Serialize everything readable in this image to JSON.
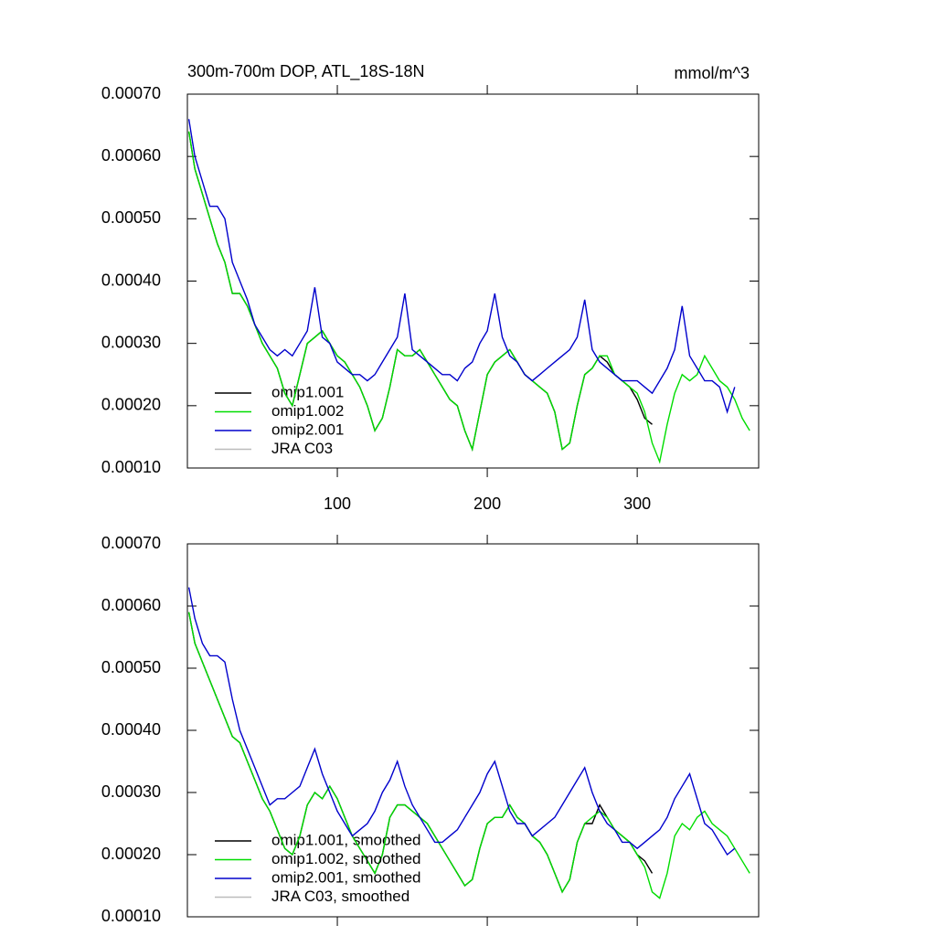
{
  "chart_data": [
    {
      "type": "line",
      "title": "300m-700m DOP, ATL_18S-18N",
      "units": "mmol/m^3",
      "xlim": [
        0,
        381
      ],
      "xticks": [
        100,
        200,
        300
      ],
      "ylim": [
        0.0001,
        0.0007
      ],
      "yticks": [
        {
          "value": 0.0001,
          "label": "0.00010"
        },
        {
          "value": 0.0002,
          "label": "0.00020"
        },
        {
          "value": 0.0003,
          "label": "0.00030"
        },
        {
          "value": 0.0004,
          "label": "0.00040"
        },
        {
          "value": 0.0005,
          "label": "0.00050"
        },
        {
          "value": 0.0006,
          "label": "0.00060"
        },
        {
          "value": 0.0007,
          "label": "0.00070"
        }
      ],
      "x": [
        1,
        5,
        10,
        15,
        20,
        25,
        30,
        35,
        40,
        45,
        50,
        55,
        60,
        65,
        70,
        75,
        80,
        85,
        90,
        95,
        100,
        105,
        110,
        115,
        120,
        125,
        130,
        135,
        140,
        145,
        150,
        155,
        160,
        165,
        170,
        175,
        180,
        185,
        190,
        195,
        200,
        205,
        210,
        215,
        220,
        225,
        230,
        235,
        240,
        245,
        250,
        255,
        260,
        265,
        270,
        275,
        280,
        285,
        290,
        295,
        300,
        305,
        310,
        315,
        320,
        325,
        330,
        335,
        340,
        345,
        350,
        355,
        360,
        365,
        370,
        375
      ],
      "series": [
        {
          "name": "omip1.001",
          "color": "#000000",
          "values": [
            0.00064,
            0.00058,
            0.00054,
            0.0005,
            0.00046,
            0.00043,
            0.00038,
            0.00038,
            0.00036,
            0.00033,
            0.0003,
            0.00028,
            0.00026,
            0.00022,
            0.0002,
            0.00025,
            0.0003,
            0.00031,
            0.00032,
            0.0003,
            0.00028,
            0.00027,
            0.00025,
            0.00023,
            0.0002,
            0.00016,
            0.00018,
            0.00023,
            0.00029,
            0.00028,
            0.00028,
            0.00029,
            0.00027,
            0.00025,
            0.00023,
            0.00021,
            0.0002,
            0.00016,
            0.00013,
            0.00019,
            0.00025,
            0.00027,
            0.00028,
            0.00029,
            0.00027,
            0.00025,
            0.00024,
            0.00023,
            0.00022,
            0.00019,
            0.00013,
            0.00014,
            0.0002,
            0.00025,
            0.00026,
            0.00028,
            0.00027,
            0.00025,
            0.00024,
            0.00023,
            0.00021,
            0.00018,
            0.00017,
            null,
            null,
            null,
            null,
            null,
            null,
            null,
            null,
            null,
            null,
            null,
            null,
            null
          ]
        },
        {
          "name": "omip1.002",
          "color": "#00dd00",
          "values": [
            0.00064,
            0.00058,
            0.00054,
            0.0005,
            0.00046,
            0.00043,
            0.00038,
            0.00038,
            0.00036,
            0.00033,
            0.0003,
            0.00028,
            0.00026,
            0.00022,
            0.0002,
            0.00025,
            0.0003,
            0.00031,
            0.00032,
            0.0003,
            0.00028,
            0.00027,
            0.00025,
            0.00023,
            0.0002,
            0.00016,
            0.00018,
            0.00023,
            0.00029,
            0.00028,
            0.00028,
            0.00029,
            0.00027,
            0.00025,
            0.00023,
            0.00021,
            0.0002,
            0.00016,
            0.00013,
            0.00019,
            0.00025,
            0.00027,
            0.00028,
            0.00029,
            0.00027,
            0.00025,
            0.00024,
            0.00023,
            0.00022,
            0.00019,
            0.00013,
            0.00014,
            0.0002,
            0.00025,
            0.00026,
            0.00028,
            0.00028,
            0.00025,
            0.00024,
            0.00023,
            0.00022,
            0.00019,
            0.00014,
            0.00011,
            0.00017,
            0.00022,
            0.00025,
            0.00024,
            0.00025,
            0.00028,
            0.00026,
            0.00024,
            0.00023,
            0.00021,
            0.00018,
            0.00016
          ]
        },
        {
          "name": "omip2.001",
          "color": "#0000cc",
          "values": [
            0.00066,
            0.0006,
            0.00056,
            0.00052,
            0.00052,
            0.0005,
            0.00043,
            0.0004,
            0.00037,
            0.00033,
            0.00031,
            0.00029,
            0.00028,
            0.00029,
            0.00028,
            0.0003,
            0.00032,
            0.00039,
            0.00031,
            0.0003,
            0.00027,
            0.00026,
            0.00025,
            0.00025,
            0.00024,
            0.00025,
            0.00027,
            0.00029,
            0.00031,
            0.00038,
            0.00029,
            0.00028,
            0.00027,
            0.00026,
            0.00025,
            0.00025,
            0.00024,
            0.00026,
            0.00027,
            0.0003,
            0.00032,
            0.00038,
            0.00031,
            0.00028,
            0.00027,
            0.00025,
            0.00024,
            0.00025,
            0.00026,
            0.00027,
            0.00028,
            0.00029,
            0.00031,
            0.00037,
            0.00029,
            0.00027,
            0.00026,
            0.00025,
            0.00024,
            0.00024,
            0.00024,
            0.00023,
            0.00022,
            0.00024,
            0.00026,
            0.00029,
            0.00036,
            0.00028,
            0.00026,
            0.00024,
            0.00024,
            0.00023,
            0.00019,
            0.00023,
            null,
            null
          ]
        },
        {
          "name": "JRA C03",
          "color": "#bbbbbb"
        }
      ]
    },
    {
      "type": "line",
      "xlim": [
        0,
        381
      ],
      "xticks": [
        100,
        200,
        300
      ],
      "ylim": [
        0.0001,
        0.0007
      ],
      "yticks": [
        {
          "value": 0.0001,
          "label": "0.00010"
        },
        {
          "value": 0.0002,
          "label": "0.00020"
        },
        {
          "value": 0.0003,
          "label": "0.00030"
        },
        {
          "value": 0.0004,
          "label": "0.00040"
        },
        {
          "value": 0.0005,
          "label": "0.00050"
        },
        {
          "value": 0.0006,
          "label": "0.00060"
        },
        {
          "value": 0.0007,
          "label": "0.00070"
        }
      ],
      "x": [
        1,
        5,
        10,
        15,
        20,
        25,
        30,
        35,
        40,
        45,
        50,
        55,
        60,
        65,
        70,
        75,
        80,
        85,
        90,
        95,
        100,
        105,
        110,
        115,
        120,
        125,
        130,
        135,
        140,
        145,
        150,
        155,
        160,
        165,
        170,
        175,
        180,
        185,
        190,
        195,
        200,
        205,
        210,
        215,
        220,
        225,
        230,
        235,
        240,
        245,
        250,
        255,
        260,
        265,
        270,
        275,
        280,
        285,
        290,
        295,
        300,
        305,
        310,
        315,
        320,
        325,
        330,
        335,
        340,
        345,
        350,
        355,
        360,
        365,
        370,
        375
      ],
      "series": [
        {
          "name": "omip1.001, smoothed",
          "color": "#000000",
          "values": [
            0.00059,
            0.00054,
            0.00051,
            0.00048,
            0.00045,
            0.00042,
            0.00039,
            0.00038,
            0.00035,
            0.00032,
            0.00029,
            0.00027,
            0.00024,
            0.00021,
            0.0002,
            0.00023,
            0.00028,
            0.0003,
            0.00029,
            0.00031,
            0.00029,
            0.00026,
            0.00023,
            0.00021,
            0.00019,
            0.00017,
            0.0002,
            0.00026,
            0.00028,
            0.00028,
            0.00027,
            0.00026,
            0.00025,
            0.00023,
            0.00021,
            0.00019,
            0.00017,
            0.00015,
            0.00016,
            0.00021,
            0.00025,
            0.00026,
            0.00026,
            0.00028,
            0.00026,
            0.00025,
            0.00023,
            0.00022,
            0.0002,
            0.00017,
            0.00014,
            0.00016,
            0.00022,
            0.00025,
            0.00025,
            0.00028,
            0.00026,
            0.00024,
            0.00023,
            0.00022,
            0.0002,
            0.00019,
            0.00017,
            null,
            null,
            null,
            null,
            null,
            null,
            null,
            null,
            null,
            null,
            null,
            null,
            null
          ]
        },
        {
          "name": "omip1.002, smoothed",
          "color": "#00dd00",
          "values": [
            0.00059,
            0.00054,
            0.00051,
            0.00048,
            0.00045,
            0.00042,
            0.00039,
            0.00038,
            0.00035,
            0.00032,
            0.00029,
            0.00027,
            0.00024,
            0.00021,
            0.0002,
            0.00023,
            0.00028,
            0.0003,
            0.00029,
            0.00031,
            0.00029,
            0.00026,
            0.00023,
            0.00021,
            0.00019,
            0.00017,
            0.0002,
            0.00026,
            0.00028,
            0.00028,
            0.00027,
            0.00026,
            0.00025,
            0.00023,
            0.00021,
            0.00019,
            0.00017,
            0.00015,
            0.00016,
            0.00021,
            0.00025,
            0.00026,
            0.00026,
            0.00028,
            0.00026,
            0.00025,
            0.00023,
            0.00022,
            0.0002,
            0.00017,
            0.00014,
            0.00016,
            0.00022,
            0.00025,
            0.00026,
            0.00027,
            0.00026,
            0.00024,
            0.00023,
            0.00022,
            0.0002,
            0.00018,
            0.00014,
            0.00013,
            0.00017,
            0.00023,
            0.00025,
            0.00024,
            0.00026,
            0.00027,
            0.00025,
            0.00024,
            0.00023,
            0.00021,
            0.00019,
            0.00017
          ]
        },
        {
          "name": "omip2.001, smoothed",
          "color": "#0000cc",
          "values": [
            0.00063,
            0.00058,
            0.00054,
            0.00052,
            0.00052,
            0.00051,
            0.00045,
            0.0004,
            0.00037,
            0.00034,
            0.00031,
            0.00028,
            0.00029,
            0.00029,
            0.0003,
            0.00031,
            0.00034,
            0.00037,
            0.00033,
            0.0003,
            0.00027,
            0.00025,
            0.00023,
            0.00024,
            0.00025,
            0.00027,
            0.0003,
            0.00032,
            0.00035,
            0.00031,
            0.00028,
            0.00026,
            0.00024,
            0.00022,
            0.00022,
            0.00023,
            0.00024,
            0.00026,
            0.00028,
            0.0003,
            0.00033,
            0.00035,
            0.00031,
            0.00027,
            0.00025,
            0.00025,
            0.00023,
            0.00024,
            0.00025,
            0.00026,
            0.00028,
            0.0003,
            0.00032,
            0.00034,
            0.0003,
            0.00027,
            0.00025,
            0.00024,
            0.00022,
            0.00022,
            0.00021,
            0.00022,
            0.00023,
            0.00024,
            0.00026,
            0.00029,
            0.00031,
            0.00033,
            0.00029,
            0.00025,
            0.00024,
            0.00022,
            0.0002,
            0.00021,
            null,
            null
          ]
        },
        {
          "name": "JRA C03, smoothed",
          "color": "#bbbbbb"
        }
      ]
    }
  ]
}
